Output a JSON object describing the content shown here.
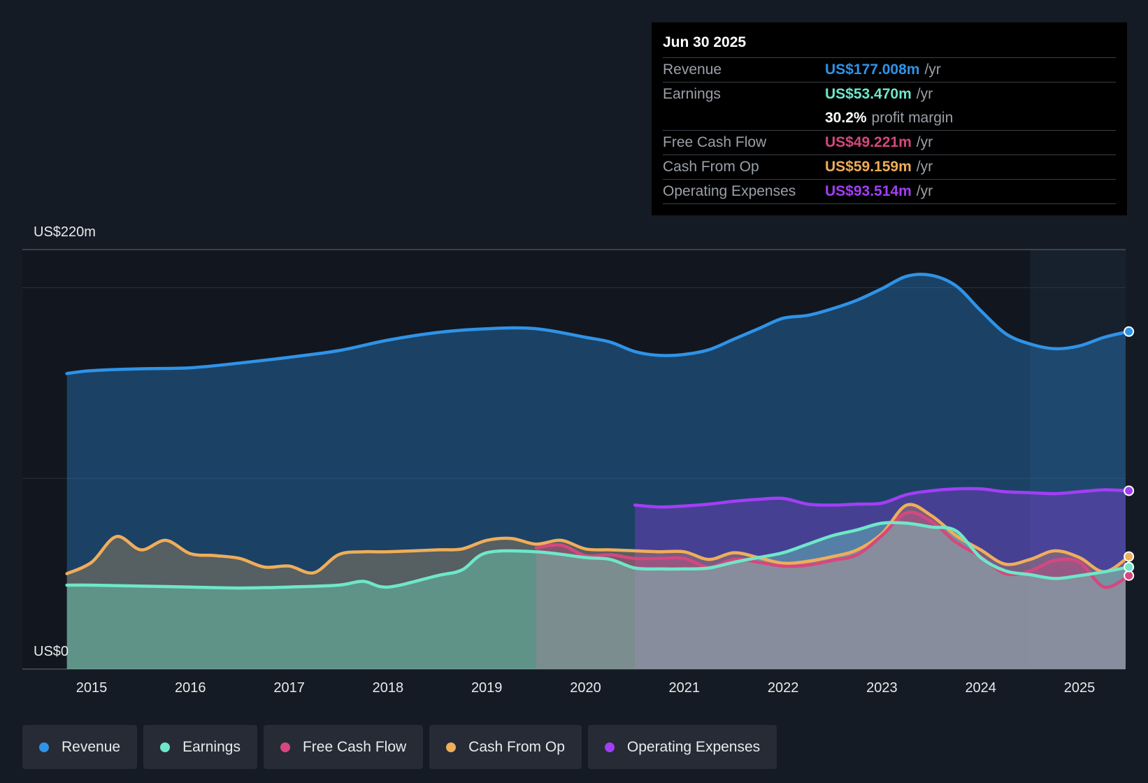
{
  "tooltip": {
    "date": "Jun 30 2025",
    "rows": [
      {
        "label": "Revenue",
        "value": "US$177.008m",
        "unit": "/yr",
        "color": "#2f93e8"
      },
      {
        "label": "Earnings",
        "value": "US$53.470m",
        "unit": "/yr",
        "color": "#6ee7c9"
      },
      {
        "label": "",
        "value": "30.2%",
        "unit": "profit margin",
        "color": "#ffffff"
      },
      {
        "label": "Free Cash Flow",
        "value": "US$49.221m",
        "unit": "/yr",
        "color": "#d6477f"
      },
      {
        "label": "Cash From Op",
        "value": "US$59.159m",
        "unit": "/yr",
        "color": "#f0ad5a"
      },
      {
        "label": "Operating Expenses",
        "value": "US$93.514m",
        "unit": "/yr",
        "color": "#a23ef5"
      }
    ]
  },
  "legend": [
    {
      "label": "Revenue",
      "color": "#2f93e8"
    },
    {
      "label": "Earnings",
      "color": "#6ee7c9"
    },
    {
      "label": "Free Cash Flow",
      "color": "#d6477f"
    },
    {
      "label": "Cash From Op",
      "color": "#f0ad5a"
    },
    {
      "label": "Operating Expenses",
      "color": "#a23ef5"
    }
  ],
  "chart_data": {
    "type": "area",
    "title": "",
    "xlabel": "",
    "ylabel": "",
    "y_top_label": "US$220m",
    "y_bottom_label": "US$0",
    "ylim": [
      0,
      220
    ],
    "xlim": [
      2014.75,
      2025.5
    ],
    "x_ticks": [
      "2015",
      "2016",
      "2017",
      "2018",
      "2019",
      "2020",
      "2021",
      "2022",
      "2023",
      "2024",
      "2025"
    ],
    "forecast_shade_start": 2024.5,
    "series": [
      {
        "name": "Revenue",
        "color": "#2f93e8",
        "points": [
          [
            2014.75,
            155
          ],
          [
            2015.0,
            156.5
          ],
          [
            2015.5,
            157.5
          ],
          [
            2016.0,
            158
          ],
          [
            2016.5,
            160.5
          ],
          [
            2017.0,
            163.5
          ],
          [
            2017.5,
            167
          ],
          [
            2018.0,
            172.5
          ],
          [
            2018.5,
            176.5
          ],
          [
            2019.0,
            178.5
          ],
          [
            2019.5,
            178.5
          ],
          [
            2020.0,
            174
          ],
          [
            2020.25,
            171.5
          ],
          [
            2020.5,
            166.5
          ],
          [
            2020.75,
            164.5
          ],
          [
            2021.0,
            165
          ],
          [
            2021.25,
            167.5
          ],
          [
            2021.5,
            173
          ],
          [
            2021.75,
            178.5
          ],
          [
            2022.0,
            184
          ],
          [
            2022.25,
            185.5
          ],
          [
            2022.5,
            189
          ],
          [
            2022.75,
            193.5
          ],
          [
            2023.0,
            199.5
          ],
          [
            2023.25,
            206
          ],
          [
            2023.5,
            206.5
          ],
          [
            2023.75,
            201
          ],
          [
            2024.0,
            188
          ],
          [
            2024.25,
            176
          ],
          [
            2024.5,
            170.5
          ],
          [
            2024.75,
            168
          ],
          [
            2025.0,
            169.5
          ],
          [
            2025.25,
            174
          ],
          [
            2025.5,
            177
          ]
        ]
      },
      {
        "name": "Operating Expenses",
        "color": "#a23ef5",
        "points": [
          [
            2020.5,
            86
          ],
          [
            2020.75,
            85
          ],
          [
            2021.0,
            85.5
          ],
          [
            2021.25,
            86.5
          ],
          [
            2021.5,
            88
          ],
          [
            2021.75,
            89
          ],
          [
            2022.0,
            89.5
          ],
          [
            2022.25,
            86.5
          ],
          [
            2022.5,
            86
          ],
          [
            2022.75,
            86.5
          ],
          [
            2023.0,
            87
          ],
          [
            2023.25,
            91.5
          ],
          [
            2023.5,
            93.5
          ],
          [
            2023.75,
            94.5
          ],
          [
            2024.0,
            94.5
          ],
          [
            2024.25,
            93
          ],
          [
            2024.5,
            92.5
          ],
          [
            2024.75,
            92
          ],
          [
            2025.0,
            93
          ],
          [
            2025.25,
            94
          ],
          [
            2025.5,
            93.5
          ]
        ]
      },
      {
        "name": "Cash From Op",
        "color": "#f0ad5a",
        "points": [
          [
            2014.75,
            50
          ],
          [
            2015.0,
            56
          ],
          [
            2015.25,
            69.5
          ],
          [
            2015.5,
            62.5
          ],
          [
            2015.75,
            67.5
          ],
          [
            2016.0,
            60.5
          ],
          [
            2016.25,
            59.5
          ],
          [
            2016.5,
            58
          ],
          [
            2016.75,
            53.5
          ],
          [
            2017.0,
            54
          ],
          [
            2017.25,
            50.5
          ],
          [
            2017.5,
            60
          ],
          [
            2017.75,
            61.5
          ],
          [
            2018.0,
            61.5
          ],
          [
            2018.5,
            62.5
          ],
          [
            2018.75,
            63
          ],
          [
            2019.0,
            67.5
          ],
          [
            2019.25,
            68.5
          ],
          [
            2019.5,
            65.5
          ],
          [
            2019.75,
            67.5
          ],
          [
            2020.0,
            63
          ],
          [
            2020.25,
            62.5
          ],
          [
            2020.5,
            62
          ],
          [
            2020.75,
            61.5
          ],
          [
            2021.0,
            61.5
          ],
          [
            2021.25,
            57.5
          ],
          [
            2021.5,
            61
          ],
          [
            2021.75,
            58.5
          ],
          [
            2022.0,
            55.5
          ],
          [
            2022.25,
            56.5
          ],
          [
            2022.5,
            59
          ],
          [
            2022.75,
            62.5
          ],
          [
            2023.0,
            71
          ],
          [
            2023.25,
            86
          ],
          [
            2023.5,
            80.5
          ],
          [
            2023.75,
            70
          ],
          [
            2024.0,
            62.5
          ],
          [
            2024.25,
            55
          ],
          [
            2024.5,
            57.5
          ],
          [
            2024.75,
            62
          ],
          [
            2025.0,
            58.5
          ],
          [
            2025.25,
            51
          ],
          [
            2025.5,
            59
          ]
        ]
      },
      {
        "name": "Free Cash Flow",
        "color": "#d6477f",
        "points": [
          [
            2019.5,
            63.5
          ],
          [
            2019.75,
            65
          ],
          [
            2020.0,
            59.5
          ],
          [
            2020.25,
            60
          ],
          [
            2020.5,
            58
          ],
          [
            2020.75,
            58
          ],
          [
            2021.0,
            58
          ],
          [
            2021.25,
            53.5
          ],
          [
            2021.5,
            57.5
          ],
          [
            2021.75,
            56
          ],
          [
            2022.0,
            54
          ],
          [
            2022.25,
            54.5
          ],
          [
            2022.5,
            57
          ],
          [
            2022.75,
            60
          ],
          [
            2023.0,
            70
          ],
          [
            2023.25,
            82
          ],
          [
            2023.5,
            77.5
          ],
          [
            2023.75,
            66.5
          ],
          [
            2024.0,
            59
          ],
          [
            2024.25,
            50
          ],
          [
            2024.5,
            51.5
          ],
          [
            2024.75,
            57
          ],
          [
            2025.0,
            56
          ],
          [
            2025.25,
            43
          ],
          [
            2025.5,
            49
          ]
        ]
      },
      {
        "name": "Earnings",
        "color": "#6ee7c9",
        "points": [
          [
            2014.75,
            44
          ],
          [
            2015.0,
            44
          ],
          [
            2015.5,
            43.5
          ],
          [
            2016.0,
            43
          ],
          [
            2016.5,
            42.5
          ],
          [
            2017.0,
            43
          ],
          [
            2017.5,
            44
          ],
          [
            2017.75,
            46
          ],
          [
            2018.0,
            43
          ],
          [
            2018.5,
            49
          ],
          [
            2018.75,
            52
          ],
          [
            2019.0,
            61
          ],
          [
            2019.5,
            61.5
          ],
          [
            2020.0,
            58.5
          ],
          [
            2020.25,
            57.5
          ],
          [
            2020.5,
            53
          ],
          [
            2020.75,
            52.5
          ],
          [
            2021.0,
            52.5
          ],
          [
            2021.25,
            53
          ],
          [
            2021.5,
            56
          ],
          [
            2021.75,
            58.5
          ],
          [
            2022.0,
            61
          ],
          [
            2022.25,
            65.5
          ],
          [
            2022.5,
            70
          ],
          [
            2022.75,
            73
          ],
          [
            2023.0,
            76.5
          ],
          [
            2023.25,
            76.5
          ],
          [
            2023.5,
            74.5
          ],
          [
            2023.75,
            72.5
          ],
          [
            2024.0,
            58.5
          ],
          [
            2024.25,
            51.5
          ],
          [
            2024.5,
            49.5
          ],
          [
            2024.75,
            47.5
          ],
          [
            2025.0,
            49
          ],
          [
            2025.25,
            51
          ],
          [
            2025.5,
            53.5
          ]
        ]
      }
    ]
  }
}
